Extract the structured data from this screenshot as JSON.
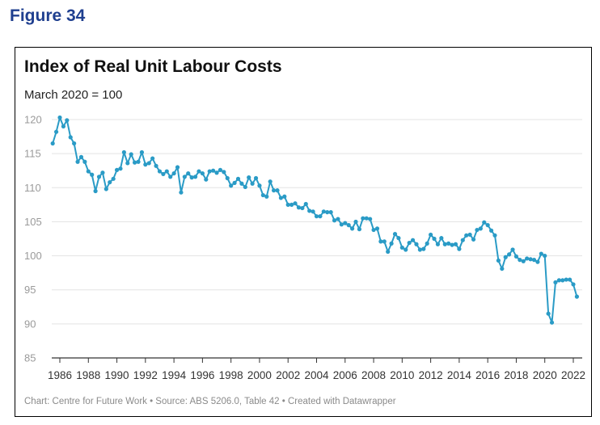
{
  "figure_label": "Figure 34",
  "chart_data": {
    "type": "line",
    "title": "Index of Real Unit Labour Costs",
    "subtitle": "March 2020 = 100",
    "footer": "Chart: Centre for Future Work • Source: ABS 5206.0, Table 42 • Created with Datawrapper",
    "xlabel": "",
    "ylabel": "",
    "xlim": [
      1986,
      2022
    ],
    "ylim": [
      85,
      120
    ],
    "yticks": [
      85,
      90,
      95,
      100,
      105,
      110,
      115,
      120
    ],
    "xticks": [
      1986,
      1988,
      1990,
      1992,
      1994,
      1996,
      1998,
      2000,
      2002,
      2004,
      2006,
      2008,
      2010,
      2012,
      2014,
      2016,
      2018,
      2020,
      2022
    ],
    "grid": true,
    "series_color": "#2a9bc6",
    "series": [
      {
        "name": "Index of Real Unit Labour Costs",
        "start_year": 1985.5,
        "step": 0.25,
        "values": [
          116.5,
          118.2,
          120.3,
          119.0,
          119.9,
          117.4,
          116.5,
          113.8,
          114.5,
          113.8,
          112.4,
          111.9,
          109.5,
          111.6,
          112.2,
          109.8,
          110.8,
          111.3,
          112.6,
          112.8,
          115.2,
          113.6,
          114.9,
          113.7,
          113.8,
          115.2,
          113.4,
          113.6,
          114.3,
          113.2,
          112.4,
          112.0,
          112.4,
          111.6,
          112.1,
          113.0,
          109.3,
          111.6,
          112.1,
          111.5,
          111.6,
          112.4,
          112.1,
          111.2,
          112.4,
          112.5,
          112.2,
          112.6,
          112.3,
          111.4,
          110.3,
          110.7,
          111.3,
          110.6,
          110.1,
          111.5,
          110.6,
          111.4,
          110.3,
          108.9,
          108.7,
          110.9,
          109.6,
          109.6,
          108.5,
          108.7,
          107.5,
          107.5,
          107.7,
          107.1,
          107.0,
          107.6,
          106.6,
          106.5,
          105.8,
          105.8,
          106.5,
          106.4,
          106.4,
          105.2,
          105.4,
          104.6,
          104.8,
          104.5,
          104.0,
          105.0,
          103.9,
          105.5,
          105.5,
          105.4,
          103.8,
          104.0,
          102.1,
          102.1,
          100.6,
          101.8,
          103.2,
          102.6,
          101.2,
          100.9,
          101.9,
          102.3,
          101.7,
          100.9,
          101.0,
          101.8,
          103.1,
          102.5,
          101.7,
          102.6,
          101.7,
          101.8,
          101.6,
          101.7,
          101.0,
          102.3,
          103.0,
          103.1,
          102.4,
          103.8,
          104.0,
          104.9,
          104.5,
          103.7,
          103.0,
          99.3,
          98.1,
          99.8,
          100.2,
          100.9,
          99.9,
          99.4,
          99.2,
          99.6,
          99.5,
          99.4,
          99.1,
          100.3,
          100.0,
          91.5,
          90.2,
          96.1,
          96.4,
          96.4,
          96.5,
          96.5,
          95.8,
          94.0
        ]
      }
    ]
  }
}
